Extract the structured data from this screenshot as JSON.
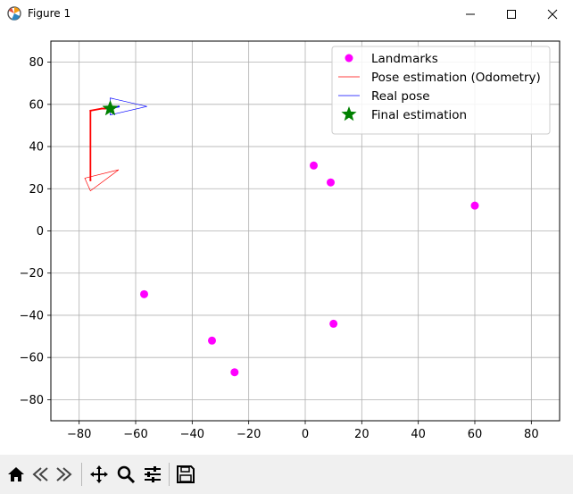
{
  "window": {
    "title": "Figure 1",
    "icons": [
      "matplotlib-icon",
      "minimize-icon",
      "maximize-icon",
      "close-icon"
    ]
  },
  "toolbar": {
    "tools": [
      "home-icon",
      "back-icon",
      "forward-icon",
      "pan-icon",
      "zoom-icon",
      "configure-subplots-icon",
      "save-icon"
    ]
  },
  "chart_data": {
    "type": "scatter",
    "title": "",
    "xlabel": "",
    "ylabel": "",
    "xlim": [
      -90,
      90
    ],
    "ylim": [
      -90,
      90
    ],
    "xticks": [
      -80,
      -60,
      -40,
      -20,
      0,
      20,
      40,
      60,
      80
    ],
    "yticks": [
      -80,
      -60,
      -40,
      -20,
      0,
      20,
      40,
      60,
      80
    ],
    "xtick_labels": [
      "−80",
      "−60",
      "−40",
      "−20",
      "0",
      "20",
      "40",
      "60",
      "80"
    ],
    "ytick_labels": [
      "−80",
      "−60",
      "−40",
      "−20",
      "0",
      "20",
      "40",
      "60",
      "80"
    ],
    "grid": true,
    "legend_position": "top-right",
    "series": [
      {
        "name": "Landmarks",
        "kind": "scatter",
        "color": "#ff00ff",
        "points": [
          [
            3,
            31
          ],
          [
            9,
            23
          ],
          [
            60,
            12
          ],
          [
            -57,
            -30
          ],
          [
            -33,
            -52
          ],
          [
            10,
            -44
          ],
          [
            -25,
            -67
          ]
        ]
      },
      {
        "name": "Pose estimation (Odometry)",
        "kind": "line",
        "color": "#ff0000",
        "path": [
          [
            -76,
            24
          ],
          [
            -76,
            57
          ],
          [
            -72,
            58
          ],
          [
            -69,
            58
          ]
        ],
        "triangle": [
          [
            -66,
            29
          ],
          [
            -78,
            25
          ],
          [
            -76,
            19
          ]
        ]
      },
      {
        "name": "Real pose",
        "kind": "line",
        "color": "#0000ff",
        "path": [
          [
            -69,
            58
          ],
          [
            -66,
            59
          ]
        ],
        "triangle": [
          [
            -56,
            59
          ],
          [
            -69,
            63
          ],
          [
            -69,
            55
          ]
        ]
      },
      {
        "name": "Final estimation",
        "kind": "marker",
        "marker": "star",
        "color": "#008000",
        "points": [
          [
            -69,
            58
          ]
        ]
      }
    ]
  }
}
